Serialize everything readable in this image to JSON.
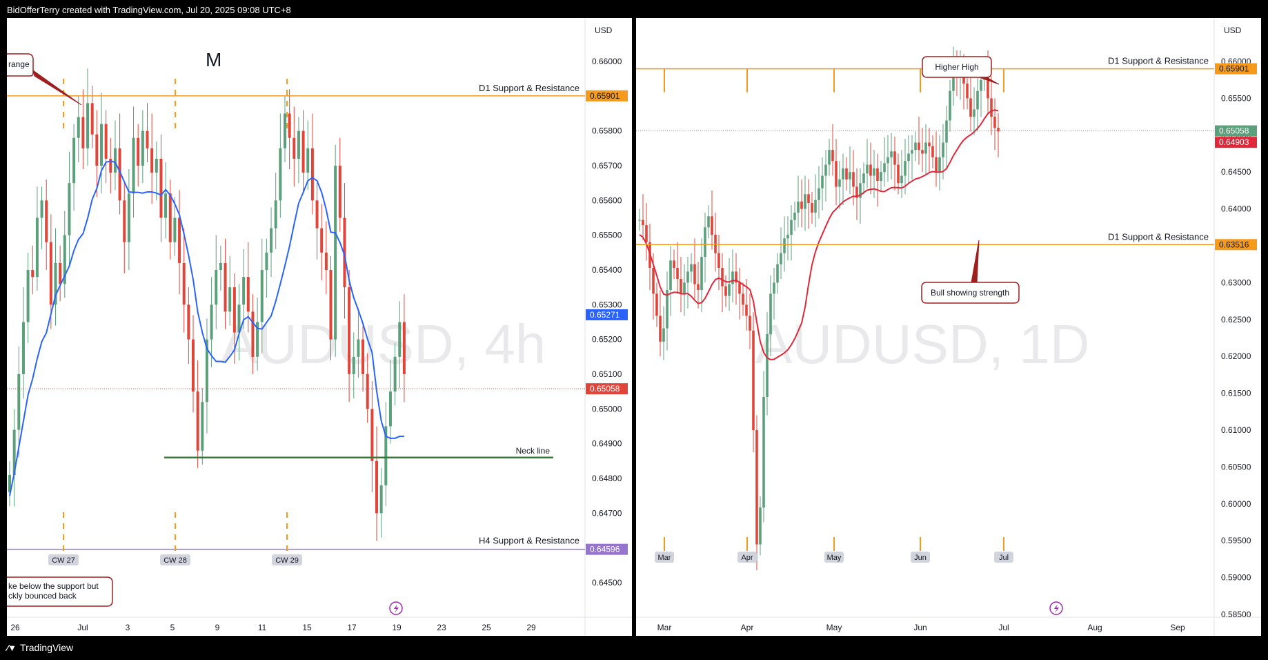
{
  "header": {
    "credit": "BidOfferTerry created with TradingView.com, Jul 20, 2025 09:08 UTC+8"
  },
  "footer": {
    "brand": "TradingView",
    "logo": "tv-logo-icon"
  },
  "colors": {
    "up": "#5b9f7b",
    "down": "#e0453a",
    "sr_orange": "#f59a1b",
    "sma_blue": "#2962ff",
    "ma_red": "#e0283a",
    "neck_green": "#2e7d32",
    "h4_purple": "#9575cd"
  },
  "chart_data": [
    {
      "type": "candlestick",
      "title": "AUDUSD, 4h",
      "currency": "USD",
      "ylim": [
        0.644,
        0.661
      ],
      "yticks": [
        "0.66000",
        "0.65900",
        "0.65800",
        "0.65700",
        "0.65600",
        "0.65500",
        "0.65400",
        "0.65300",
        "0.65200",
        "0.65100",
        "0.65000",
        "0.64900",
        "0.64800",
        "0.64700",
        "0.64600",
        "0.64500"
      ],
      "xticks": [
        "26",
        "Jul",
        "3",
        "5",
        "9",
        "11",
        "15",
        "17",
        "19",
        "23",
        "25",
        "29"
      ],
      "week_labels": [
        "CW 27",
        "CW 28",
        "CW 29"
      ],
      "price_labels": [
        {
          "value": 0.65901,
          "text": "0.65901",
          "color": "#f59a1b"
        },
        {
          "value": 0.65271,
          "text": "0.65271",
          "color": "#2962ff"
        },
        {
          "value": 0.65058,
          "text": "0.65058",
          "color": "#e0453a"
        },
        {
          "value": 0.64596,
          "text": "0.64596",
          "color": "#9575cd"
        }
      ],
      "lines": [
        {
          "name": "D1 Support & Resistance",
          "value": 0.65901,
          "color": "#f59a1b"
        },
        {
          "name": "Neck line",
          "value": 0.6486,
          "color": "#2e7d32"
        },
        {
          "name": "H4 Support & Resistance",
          "value": 0.64596,
          "color": "#9575cd"
        }
      ],
      "annotations": {
        "pattern": "M",
        "range_label": "range",
        "callout": [
          "ke below the support but",
          "ckly bounced back"
        ]
      },
      "last_close": 0.65058
    },
    {
      "type": "candlestick",
      "title": "AUDUSD, 1D",
      "currency": "USD",
      "ylim": [
        0.585,
        0.661
      ],
      "yticks": [
        "0.66000",
        "0.65500",
        "0.65000",
        "0.64500",
        "0.64000",
        "0.63500",
        "0.63000",
        "0.62500",
        "0.62000",
        "0.61500",
        "0.61000",
        "0.60500",
        "0.60000",
        "0.59500",
        "0.59000",
        "0.58500"
      ],
      "xticks": [
        "Mar",
        "Apr",
        "May",
        "Jun",
        "Jul",
        "Aug",
        "Sep"
      ],
      "month_labels": [
        "Mar",
        "Apr",
        "May",
        "Jun",
        "Jul"
      ],
      "price_labels": [
        {
          "value": 0.65901,
          "text": "0.65901",
          "color": "#f59a1b"
        },
        {
          "value": 0.65058,
          "text": "0.65058",
          "color": "#5b9f7b"
        },
        {
          "value": 0.64903,
          "text": "0.64903",
          "color": "#e0283a"
        },
        {
          "value": 0.63516,
          "text": "0.63516",
          "color": "#f59a1b"
        }
      ],
      "lines": [
        {
          "name": "D1 Support & Resistance",
          "value": 0.65901,
          "color": "#f59a1b"
        },
        {
          "name": "D1 Support & Resistance",
          "value": 0.63516,
          "color": "#f59a1b"
        }
      ],
      "annotations": {
        "higher_high": "Higher High",
        "bull": "Bull showing strength"
      },
      "last_close": 0.65058
    }
  ]
}
